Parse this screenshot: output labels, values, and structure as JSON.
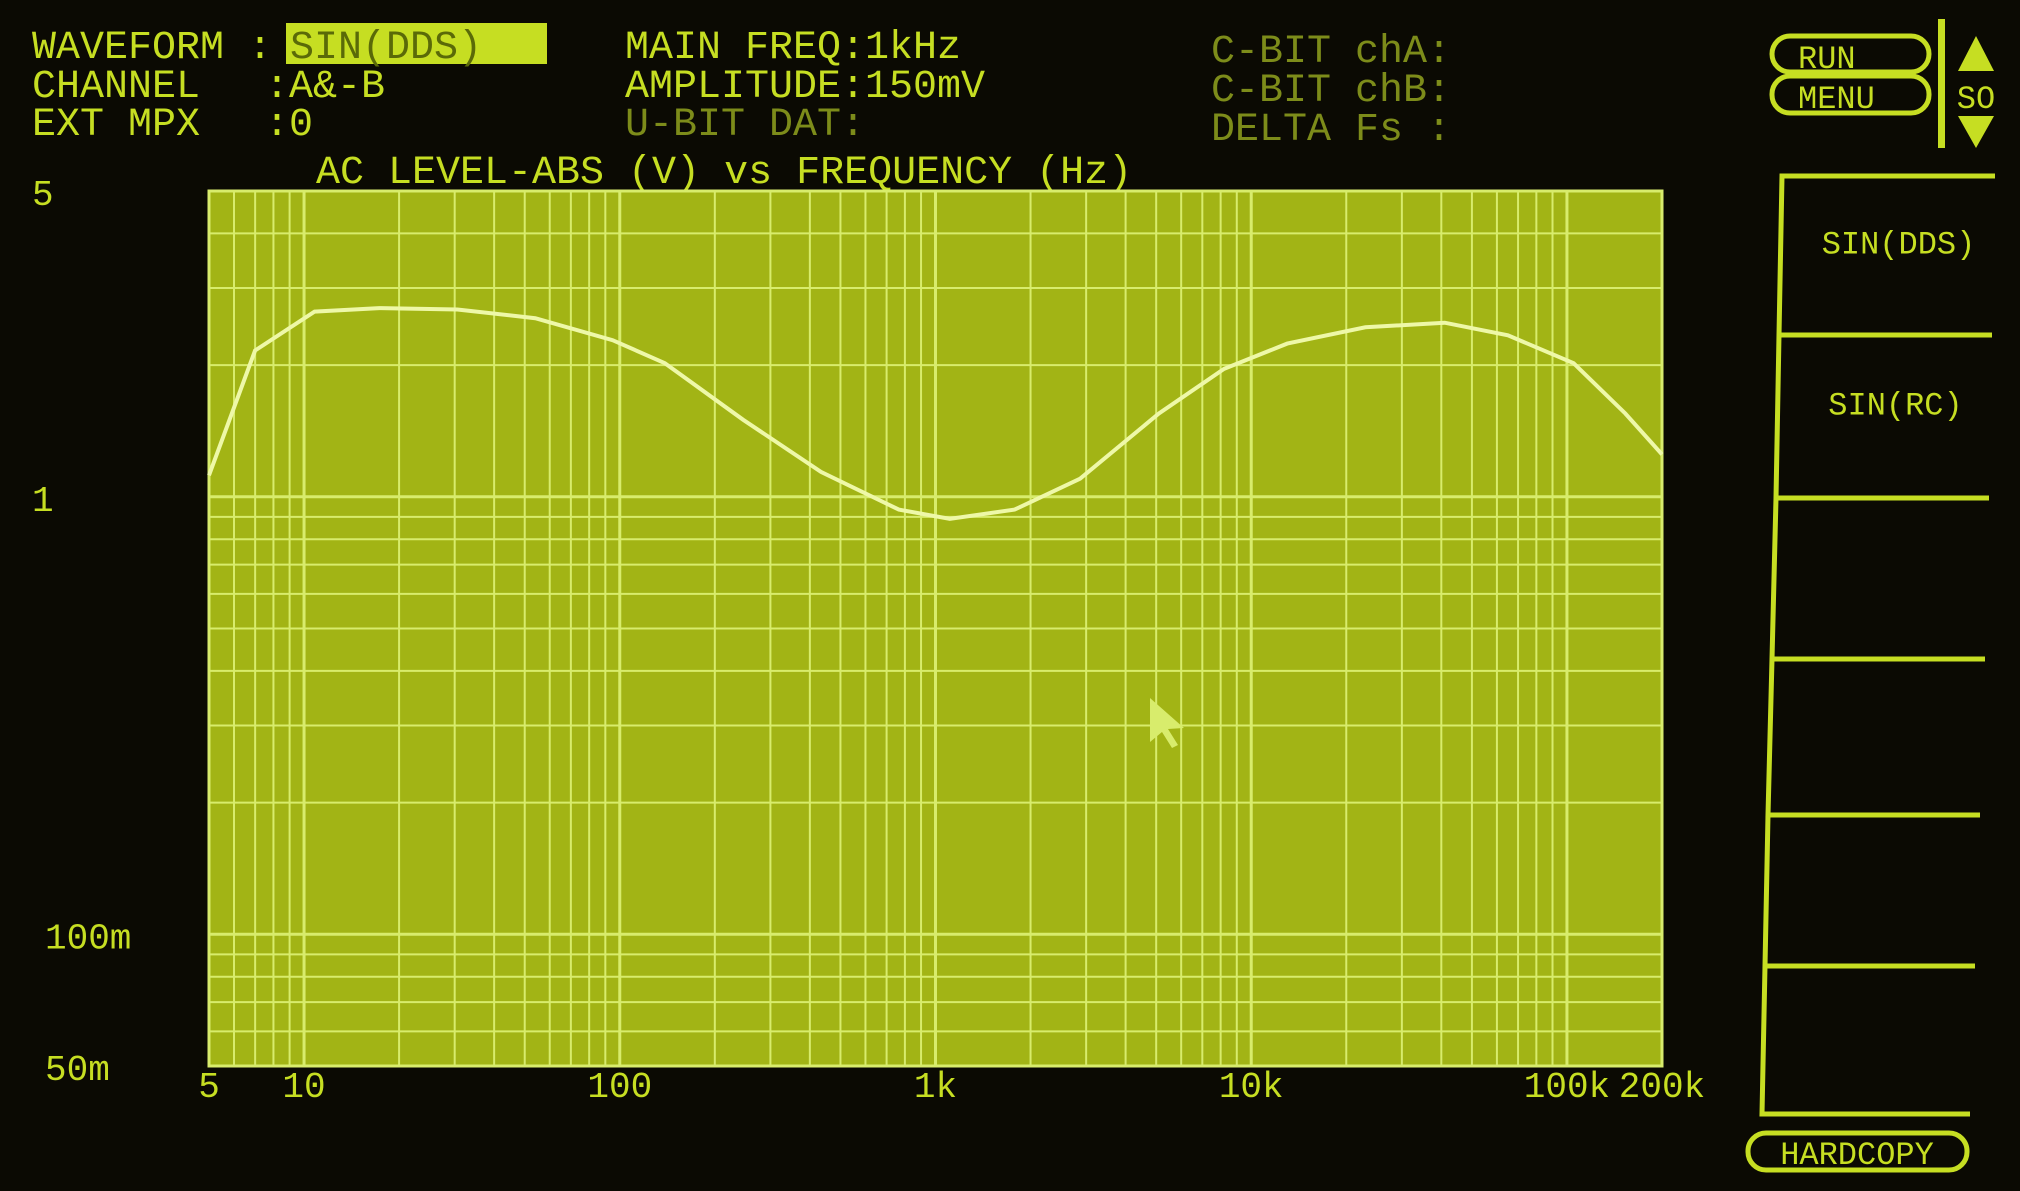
{
  "header": {
    "waveform_label": "WAVEFORM :",
    "waveform_value": "SIN(DDS)",
    "channel_label": "CHANNEL",
    "channel_value": ":A&-B",
    "ext_mpx_label": "EXT MPX",
    "ext_mpx_value": ":0",
    "main_freq": "MAIN FREQ:1kHz",
    "amplitude": "AMPLITUDE:150mV",
    "u_bit_dat": "U-BIT DAT:",
    "c_bit_cha": "C-BIT chA:",
    "c_bit_chb": "C-BIT chB:",
    "delta_fs": "DELTA Fs :"
  },
  "side_panel": {
    "run_label": "RUN",
    "menu_label": "MENU",
    "scroll_label": "SO",
    "items": [
      {
        "label": "SIN(DDS)"
      },
      {
        "label": "SIN(RC)"
      },
      {
        "label": ""
      },
      {
        "label": ""
      },
      {
        "label": ""
      },
      {
        "label": ""
      }
    ],
    "hardcopy_label": "HARDCOPY"
  },
  "colors": {
    "text": "#c6de22",
    "plot_bg": "#a2b415",
    "grid": "#d8ec6c",
    "trace": "#eef8a8",
    "background": "#0b0a03"
  },
  "chart_data": {
    "type": "line",
    "title": "AC LEVEL-ABS (V) vs FREQUENCY (Hz)",
    "x_scale": "log",
    "y_scale": "log",
    "xlim": [
      5,
      200000
    ],
    "ylim": [
      0.05,
      5
    ],
    "grid": true,
    "x_ticks": [
      {
        "v": 5,
        "label": "5"
      },
      {
        "v": 10,
        "label": "10"
      },
      {
        "v": 100,
        "label": "100"
      },
      {
        "v": 1000,
        "label": "1k"
      },
      {
        "v": 10000,
        "label": "10k"
      },
      {
        "v": 100000,
        "label": "100k"
      },
      {
        "v": 200000,
        "label": "200k"
      }
    ],
    "y_ticks": [
      {
        "v": 5,
        "label": "5"
      },
      {
        "v": 1,
        "label": "1"
      },
      {
        "v": 0.1,
        "label": "100m"
      },
      {
        "v": 0.05,
        "label": "50m"
      }
    ],
    "series": [
      {
        "x": [
          5,
          7,
          10.8,
          17.3,
          30.6,
          54,
          95,
          139,
          246,
          434,
          765,
          1110,
          1780,
          2870,
          5100,
          8200,
          13000,
          23000,
          41000,
          65000,
          105000,
          153000,
          200000
        ],
        "y": [
          1.12,
          2.16,
          2.65,
          2.7,
          2.68,
          2.56,
          2.28,
          2.02,
          1.5,
          1.14,
          0.935,
          0.89,
          0.935,
          1.1,
          1.55,
          1.96,
          2.24,
          2.44,
          2.5,
          2.34,
          2.02,
          1.55,
          1.25
        ]
      }
    ]
  }
}
